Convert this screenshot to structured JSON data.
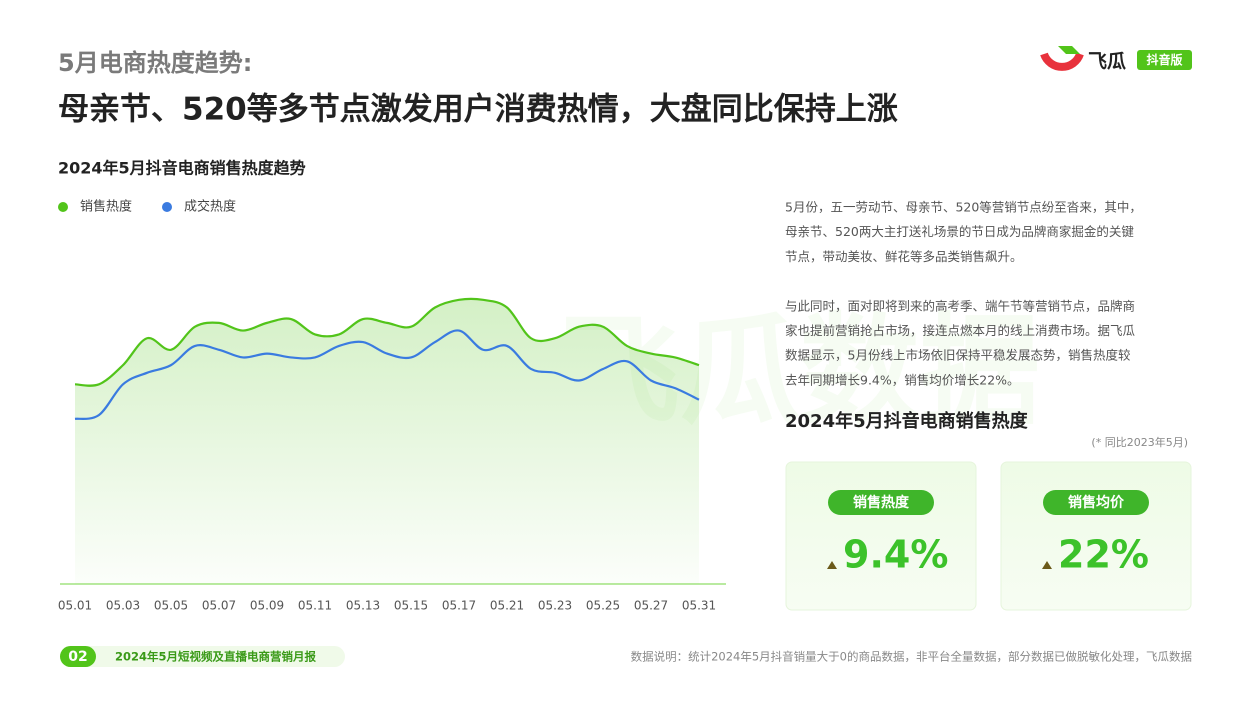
{
  "header": {
    "subtitle": "5月电商热度趋势:",
    "title": "母亲节、520等多节点激发用户消费热情，大盘同比保持上涨"
  },
  "logo": {
    "name": "飞瓜",
    "badge": "抖音版"
  },
  "watermark": "飞瓜数据",
  "chart_data": {
    "type": "line",
    "title": "2024年5月抖音电商销售热度趋势",
    "categories": [
      "05.01",
      null,
      "05.03",
      null,
      "05.05",
      null,
      "05.07",
      null,
      "05.09",
      null,
      "05.11",
      null,
      "05.13",
      null,
      "05.15",
      null,
      "05.17",
      null,
      "05.21",
      null,
      "05.23",
      null,
      "05.25",
      null,
      "05.27",
      null,
      "05.31"
    ],
    "series": [
      {
        "name": "销售热度",
        "color": "#52c41a",
        "values": [
          52,
          52,
          57,
          64,
          61,
          67,
          68,
          66,
          68,
          69,
          65,
          65,
          69,
          68,
          67,
          72,
          74,
          74,
          72,
          64,
          64,
          67,
          67,
          62,
          60,
          59,
          57
        ]
      },
      {
        "name": "成交热度",
        "color": "#3a7be0",
        "values": [
          43,
          44,
          52,
          55,
          57,
          62,
          61,
          59,
          60,
          59,
          59,
          62,
          63,
          60,
          59,
          63,
          66,
          61,
          62,
          56,
          55,
          53,
          56,
          58,
          53,
          51,
          48
        ]
      }
    ],
    "ylim": [
      0,
      100
    ],
    "legend": "top-left"
  },
  "insight": {
    "paragraphs": [
      [
        "5月份，五一劳动节、母亲节、520等营销节点纷至沓来，其中，",
        "母亲节、520两大主打送礼场景的节日成为品牌商家掘金的关键",
        "节点，带动美妆、鲜花等多品类销售飙升。"
      ],
      [
        "与此同时，面对即将到来的高考季、端午节等营销节点，品牌商",
        "家也提前营销抢占市场，接连点燃本月的线上消费市场。据飞瓜",
        "数据显示，5月份线上市场依旧保持平稳发展态势，销售热度较",
        "去年同期增长9.4%，销售均价增长22%。"
      ]
    ]
  },
  "kpi": {
    "title": "2024年5月抖音电商销售热度",
    "note": "(* 同比2023年5月)",
    "cards": [
      {
        "label": "销售热度",
        "value": "9.4%"
      },
      {
        "label": "销售均价",
        "value": "22%"
      }
    ]
  },
  "footer": {
    "page": "02",
    "report": "2024年5月短视频及直播电商营销月报",
    "source": "数据说明：统计2024年5月抖音销量大于0的商品数据，非平台全量数据，部分数据已做脱敏化处理，飞瓜数据"
  }
}
